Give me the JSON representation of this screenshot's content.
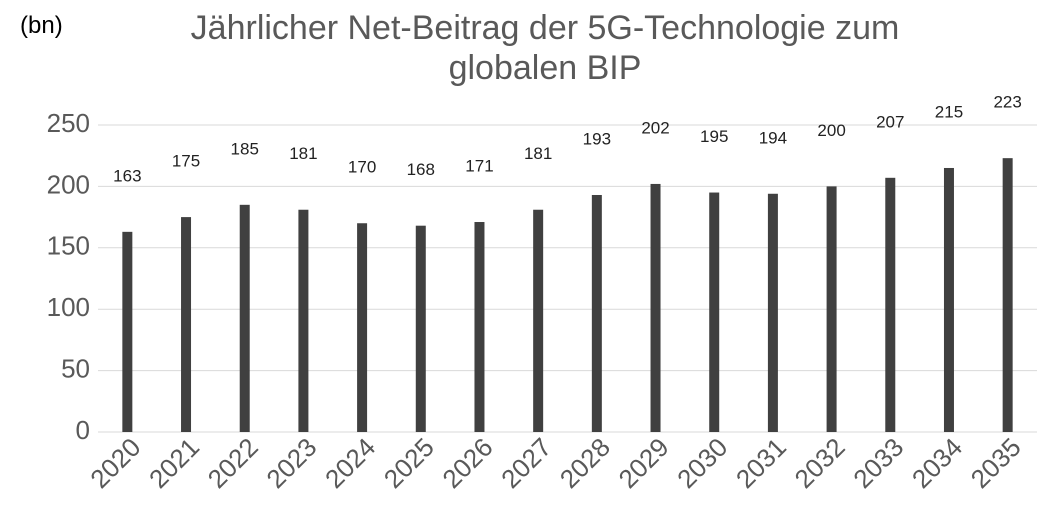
{
  "chart_data": {
    "type": "bar",
    "title": "Jährlicher Net-Beitrag der 5G-Technologie zum globalen BIP",
    "y_unit_label": "(bn)",
    "categories": [
      "2020",
      "2021",
      "2022",
      "2023",
      "2024",
      "2025",
      "2026",
      "2027",
      "2028",
      "2029",
      "2030",
      "2031",
      "2032",
      "2033",
      "2034",
      "2035"
    ],
    "values": [
      163,
      175,
      185,
      181,
      170,
      168,
      171,
      181,
      193,
      202,
      195,
      194,
      200,
      207,
      215,
      223
    ],
    "color": "#404040",
    "ylim": [
      0,
      250
    ],
    "yticks": [
      0,
      50,
      100,
      150,
      200,
      250
    ],
    "grid": true
  }
}
